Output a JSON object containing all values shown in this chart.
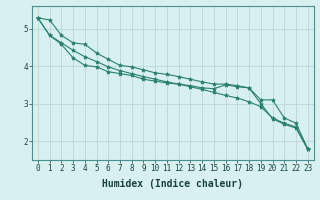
{
  "title": "",
  "xlabel": "Humidex (Indice chaleur)",
  "ylabel": "",
  "background_color": "#d8f0f0",
  "grid_color": "#b8d8d8",
  "line_color": "#2a8070",
  "x_data": [
    0,
    1,
    2,
    3,
    4,
    5,
    6,
    7,
    8,
    9,
    10,
    11,
    12,
    13,
    14,
    15,
    16,
    17,
    18,
    19,
    20,
    21,
    22,
    23
  ],
  "line1": [
    5.28,
    5.23,
    4.82,
    4.62,
    4.58,
    4.35,
    4.18,
    4.02,
    3.98,
    3.9,
    3.82,
    3.78,
    3.72,
    3.65,
    3.58,
    3.52,
    3.52,
    3.48,
    3.42,
    3.0,
    2.6,
    2.45,
    2.35,
    1.78
  ],
  "line2": [
    5.28,
    4.82,
    4.62,
    4.42,
    4.25,
    4.12,
    3.98,
    3.88,
    3.8,
    3.72,
    3.65,
    3.58,
    3.52,
    3.45,
    3.38,
    3.3,
    3.22,
    3.15,
    3.05,
    2.92,
    2.62,
    2.48,
    2.38,
    1.8
  ],
  "line3": [
    5.28,
    4.82,
    4.58,
    4.22,
    4.02,
    3.98,
    3.85,
    3.8,
    3.75,
    3.65,
    3.6,
    3.55,
    3.52,
    3.48,
    3.42,
    3.4,
    3.5,
    3.45,
    3.42,
    3.1,
    3.1,
    2.62,
    2.48,
    1.8
  ],
  "xlim": [
    -0.5,
    23.5
  ],
  "ylim": [
    1.5,
    5.6
  ],
  "yticks": [
    2,
    3,
    4,
    5
  ],
  "xticks": [
    0,
    1,
    2,
    3,
    4,
    5,
    6,
    7,
    8,
    9,
    10,
    11,
    12,
    13,
    14,
    15,
    16,
    17,
    18,
    19,
    20,
    21,
    22,
    23
  ],
  "marker": "*",
  "markersize": 3,
  "linewidth": 0.8,
  "xlabel_fontsize": 7,
  "tick_fontsize": 5.5
}
